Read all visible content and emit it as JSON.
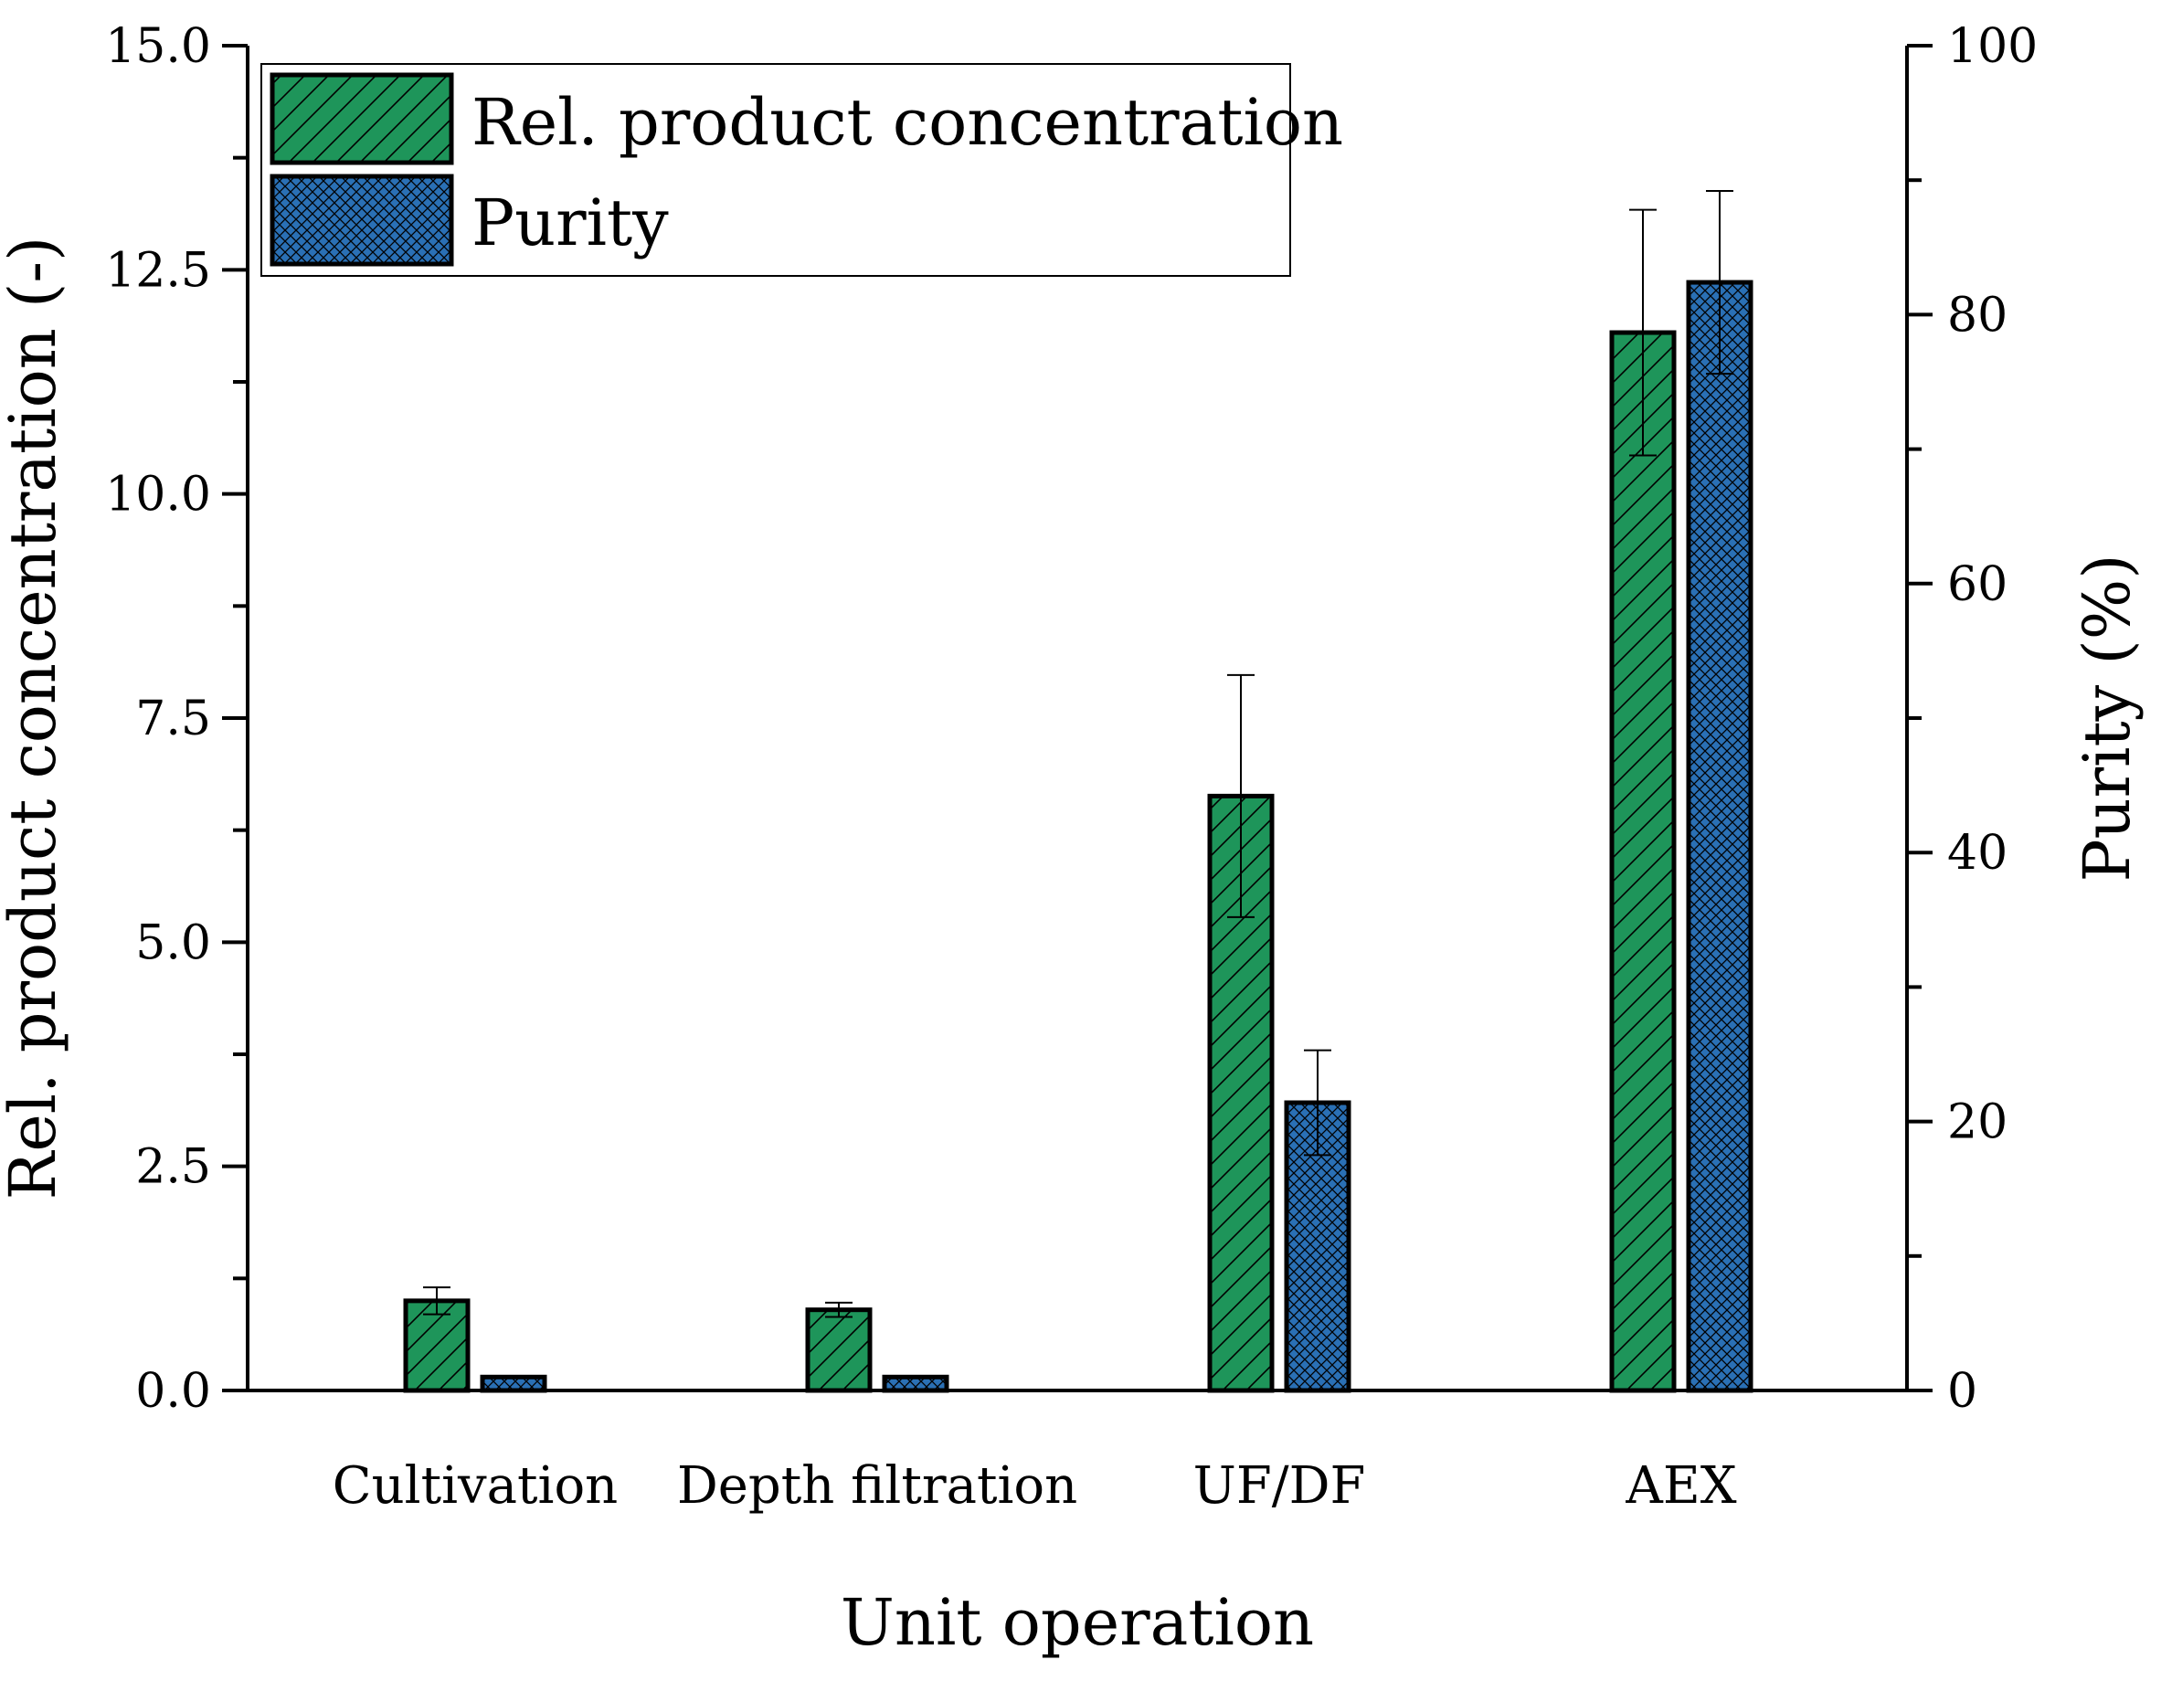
{
  "chart_data": {
    "type": "bar",
    "xlabel": "Unit operation",
    "ylabel": "Rel. product concentration (-)",
    "y2label": "Purity (%)",
    "categories": [
      "Cultivation",
      "Depth filtration",
      "UF/DF",
      "AEX"
    ],
    "ylim": [
      0,
      15
    ],
    "y2lim": [
      0,
      100
    ],
    "yticks": [
      "0.0",
      "2.5",
      "5.0",
      "7.5",
      "10.0",
      "12.5",
      "15.0"
    ],
    "y2ticks": [
      "0",
      "20",
      "40",
      "60",
      "80",
      "100"
    ],
    "legend_position": "top-left",
    "series": [
      {
        "name": "Rel. product concentration",
        "axis": "left",
        "values": [
          1.0,
          0.9,
          6.63,
          11.8
        ],
        "errors": [
          0.15,
          0.08,
          1.35,
          1.37
        ],
        "color": "#1e955a",
        "pattern": "diagonal-hatch"
      },
      {
        "name": "Purity",
        "axis": "right",
        "values": [
          1.0,
          1.0,
          21.4,
          82.4
        ],
        "errors": [
          0.0,
          0.0,
          3.9,
          6.8
        ],
        "color": "#2a70b5",
        "pattern": "cross-hatch"
      }
    ]
  }
}
